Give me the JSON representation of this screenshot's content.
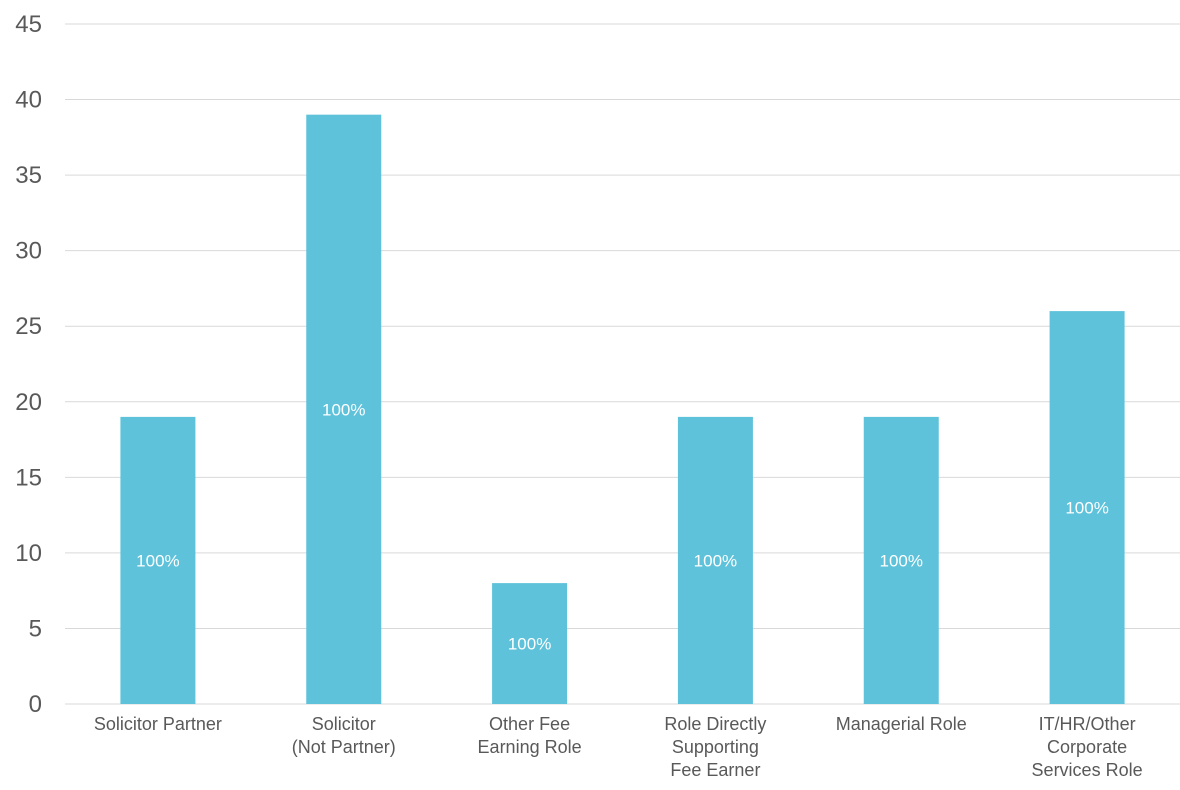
{
  "chart_data": {
    "type": "bar",
    "title": "",
    "xlabel": "",
    "ylabel": "",
    "categories": [
      [
        "Solicitor Partner"
      ],
      [
        "Solicitor",
        "(Not Partner)"
      ],
      [
        "Other Fee",
        "Earning Role"
      ],
      [
        "Role Directly",
        "Supporting",
        "Fee Earner"
      ],
      [
        "Managerial Role"
      ],
      [
        "IT/HR/Other",
        "Corporate",
        "Services Role"
      ]
    ],
    "values": [
      19,
      39,
      8,
      19,
      19,
      26
    ],
    "data_labels": [
      "100%",
      "100%",
      "100%",
      "100%",
      "100%",
      "100%"
    ],
    "ylim": [
      0,
      45
    ],
    "yticks": [
      0,
      5,
      10,
      15,
      20,
      25,
      30,
      35,
      40,
      45
    ],
    "grid": true,
    "legend": "none",
    "bar_color": "#5ec2da"
  }
}
